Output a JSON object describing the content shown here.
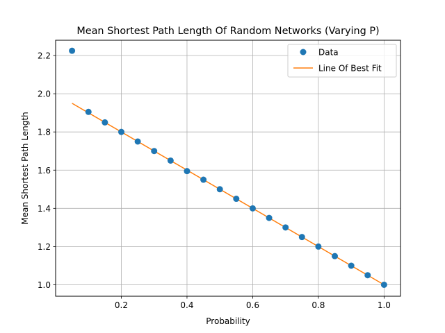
{
  "chart_data": {
    "type": "scatter",
    "title": "Mean Shortest Path Length Of Random Networks (Varying P)",
    "xlabel": "Probability",
    "ylabel": "Mean Shortest Path Length",
    "xlim": [
      0.0,
      1.05
    ],
    "ylim": [
      0.94,
      2.28
    ],
    "xticks": [
      0.2,
      0.4,
      0.6,
      0.8,
      1.0
    ],
    "xtick_labels": [
      "0.2",
      "0.4",
      "0.6",
      "0.8",
      "1.0"
    ],
    "yticks": [
      1.0,
      1.2,
      1.4,
      1.6,
      1.8,
      2.0,
      2.2
    ],
    "ytick_labels": [
      "1.0",
      "1.2",
      "1.4",
      "1.6",
      "1.8",
      "2.0",
      "2.2"
    ],
    "grid": true,
    "legend_position": "top-right",
    "series": [
      {
        "name": "Data",
        "kind": "scatter",
        "color": "#1f77b4",
        "x": [
          0.05,
          0.1,
          0.15,
          0.2,
          0.25,
          0.3,
          0.35,
          0.4,
          0.45,
          0.5,
          0.55,
          0.6,
          0.65,
          0.7,
          0.75,
          0.8,
          0.85,
          0.9,
          0.95,
          1.0
        ],
        "y": [
          2.225,
          1.905,
          1.85,
          1.8,
          1.75,
          1.7,
          1.65,
          1.595,
          1.55,
          1.5,
          1.45,
          1.4,
          1.35,
          1.3,
          1.25,
          1.2,
          1.15,
          1.1,
          1.05,
          1.0
        ]
      },
      {
        "name": "Line Of Best Fit",
        "kind": "line",
        "color": "#ff7f0e",
        "x": [
          0.05,
          1.0
        ],
        "y": [
          1.95,
          1.0
        ]
      }
    ]
  }
}
